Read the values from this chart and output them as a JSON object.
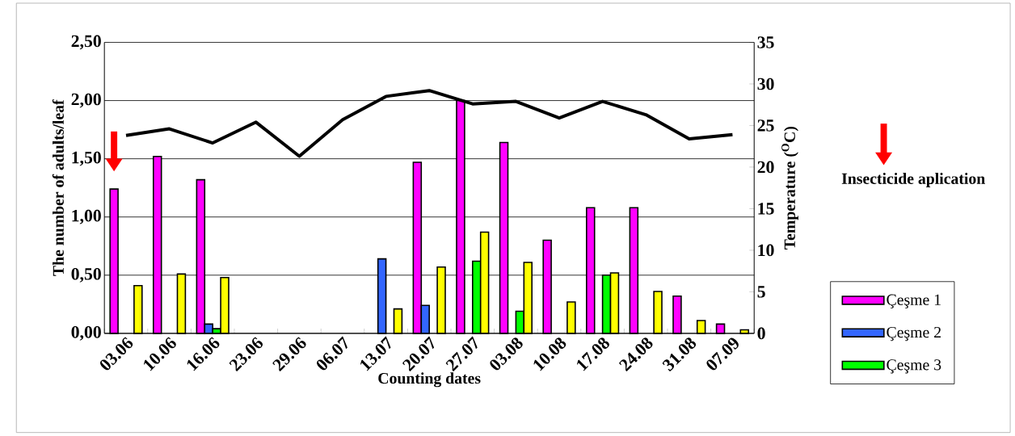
{
  "chart_data": {
    "type": "bar",
    "xlabel": "Counting dates",
    "ylabel": "The number of adults/leaf",
    "y2label": "Temperature ($^{O}$C)",
    "categories": [
      "03.06",
      "10.06",
      "16.06",
      "23.06",
      "29.06",
      "06.07",
      "13.07",
      "20.07",
      "27.07",
      "03.08",
      "10.08",
      "17.08",
      "24.08",
      "31.08",
      "07.09"
    ],
    "series": [
      {
        "name": "Çeşme 1",
        "color": "#ff00ff",
        "values": [
          1.24,
          1.52,
          1.32,
          null,
          null,
          null,
          null,
          1.47,
          2.0,
          1.64,
          0.8,
          1.08,
          1.08,
          0.32,
          0.08
        ]
      },
      {
        "name": "Çeşme 2",
        "color": "#3366ff",
        "values": [
          null,
          null,
          0.08,
          null,
          null,
          null,
          0.64,
          0.24,
          null,
          null,
          null,
          null,
          null,
          null,
          null
        ]
      },
      {
        "name": "Çeşme 3",
        "color": "#00ff00",
        "values": [
          null,
          null,
          0.04,
          null,
          null,
          null,
          null,
          null,
          0.62,
          0.19,
          null,
          0.5,
          null,
          null,
          null
        ]
      },
      {
        "color": "#ffff00",
        "values": [
          0.41,
          0.51,
          0.48,
          null,
          null,
          null,
          0.21,
          0.57,
          0.87,
          0.61,
          0.27,
          0.52,
          0.36,
          0.11,
          0.03
        ]
      },
      {
        "type": "line",
        "axis": "y2",
        "color": "#000000",
        "values": [
          23.8,
          24.6,
          22.9,
          25.4,
          21.3,
          25.7,
          28.5,
          29.2,
          27.6,
          27.9,
          25.9,
          27.9,
          26.3,
          23.4,
          23.9
        ]
      }
    ],
    "ylim": [
      0,
      2.5
    ],
    "yticks": [
      {
        "value": 0,
        "label": "0,00"
      },
      {
        "value": 0.5,
        "label": "0,50"
      },
      {
        "value": 1,
        "label": "1,00"
      },
      {
        "value": 1.5,
        "label": "1,50"
      },
      {
        "value": 2,
        "label": "2,00"
      },
      {
        "value": 2.5,
        "label": "2,50"
      }
    ],
    "y2lim": [
      0,
      35
    ],
    "y2ticks": [
      0,
      5,
      10,
      15,
      20,
      25,
      30,
      35
    ],
    "grid": "y",
    "legend": "right",
    "marker": "none",
    "line_style": "solid",
    "annotations": [
      "Insecticide aplication"
    ]
  }
}
